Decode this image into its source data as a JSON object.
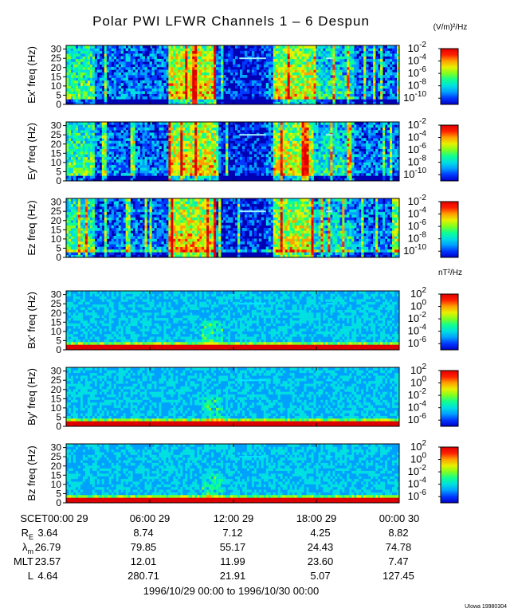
{
  "title": "Polar PWI LFWR Channels 1 – 6 Despun",
  "footer_tag": "UIowa 19980304",
  "date_range": "1996/10/29 00:00 to 1996/10/30 00:00",
  "colormap": [
    "#0000c8",
    "#0038ff",
    "#00a0ff",
    "#00e0e0",
    "#10ff90",
    "#80ff20",
    "#e8f000",
    "#ffa000",
    "#ff2000",
    "#e00000"
  ],
  "chart_data": {
    "type": "heatmap",
    "panels": [
      {
        "id": "ex",
        "ylabel": "Ex' freq (Hz)",
        "group": "E",
        "cbar_unit": "(V/m)²/Hz",
        "cbar_ticks": [
          {
            "exp": "-2",
            "value": -2
          },
          {
            "exp": "-4",
            "value": -4
          },
          {
            "exp": "-6",
            "value": -6
          },
          {
            "exp": "-8",
            "value": -8
          },
          {
            "exp": "-10",
            "value": -10
          }
        ]
      },
      {
        "id": "ey",
        "ylabel": "Ey' freq (Hz)",
        "group": "E",
        "cbar_unit": "",
        "cbar_ticks": [
          {
            "exp": "-2",
            "value": -2
          },
          {
            "exp": "-4",
            "value": -4
          },
          {
            "exp": "-6",
            "value": -6
          },
          {
            "exp": "-8",
            "value": -8
          },
          {
            "exp": "-10",
            "value": -10
          }
        ]
      },
      {
        "id": "ez",
        "ylabel": "Ez freq (Hz)",
        "group": "E",
        "cbar_unit": "",
        "cbar_ticks": [
          {
            "exp": "-2",
            "value": -2
          },
          {
            "exp": "-4",
            "value": -4
          },
          {
            "exp": "-6",
            "value": -6
          },
          {
            "exp": "-8",
            "value": -8
          },
          {
            "exp": "-10",
            "value": -10
          }
        ]
      },
      {
        "id": "bx",
        "ylabel": "Bx' freq (Hz)",
        "group": "B",
        "cbar_unit": "nT²/Hz",
        "cbar_ticks": [
          {
            "exp": "2",
            "value": 2
          },
          {
            "exp": "0",
            "value": 0
          },
          {
            "exp": "-2",
            "value": -2
          },
          {
            "exp": "-4",
            "value": -4
          },
          {
            "exp": "-6",
            "value": -6
          }
        ]
      },
      {
        "id": "by",
        "ylabel": "By' freq (Hz)",
        "group": "B",
        "cbar_unit": "",
        "cbar_ticks": [
          {
            "exp": "2",
            "value": 2
          },
          {
            "exp": "0",
            "value": 0
          },
          {
            "exp": "-2",
            "value": -2
          },
          {
            "exp": "-4",
            "value": -4
          },
          {
            "exp": "-6",
            "value": -6
          }
        ]
      },
      {
        "id": "bz",
        "ylabel": "Bz freq (Hz)",
        "group": "B",
        "cbar_unit": "",
        "cbar_ticks": [
          {
            "exp": "2",
            "value": 2
          },
          {
            "exp": "0",
            "value": 0
          },
          {
            "exp": "-2",
            "value": -2
          },
          {
            "exp": "-4",
            "value": -4
          },
          {
            "exp": "-6",
            "value": -6
          }
        ]
      }
    ],
    "y_ticks": [
      "0",
      "5",
      "10",
      "15",
      "20",
      "25",
      "30"
    ],
    "ylim": [
      0,
      32
    ],
    "e_cbar_range": [
      -11,
      -2
    ],
    "b_cbar_range": [
      -7,
      2
    ],
    "x_ticks": [
      "00:00 29",
      "06:00 29",
      "12:00 29",
      "18:00 29",
      "00:00 30"
    ],
    "ephemeris": [
      {
        "label": "SCET",
        "sub": "",
        "values": [
          "00:00 29",
          "06:00 29",
          "12:00 29",
          "18:00 29",
          "00:00 30"
        ]
      },
      {
        "label": "R",
        "sub": "E",
        "values": [
          "3.64",
          "8.74",
          "7.12",
          "4.25",
          "8.82"
        ]
      },
      {
        "label": "λ",
        "sub": "m",
        "values": [
          "26.79",
          "79.85",
          "55.17",
          "24.43",
          "74.78"
        ]
      },
      {
        "label": "MLT",
        "sub": "",
        "values": [
          "23.57",
          "12.01",
          "11.99",
          "23.60",
          "7.47"
        ]
      },
      {
        "label": "L",
        "sub": "",
        "values": [
          "4.64",
          "280.71",
          "21.91",
          "5.07",
          "127.45"
        ]
      }
    ]
  }
}
